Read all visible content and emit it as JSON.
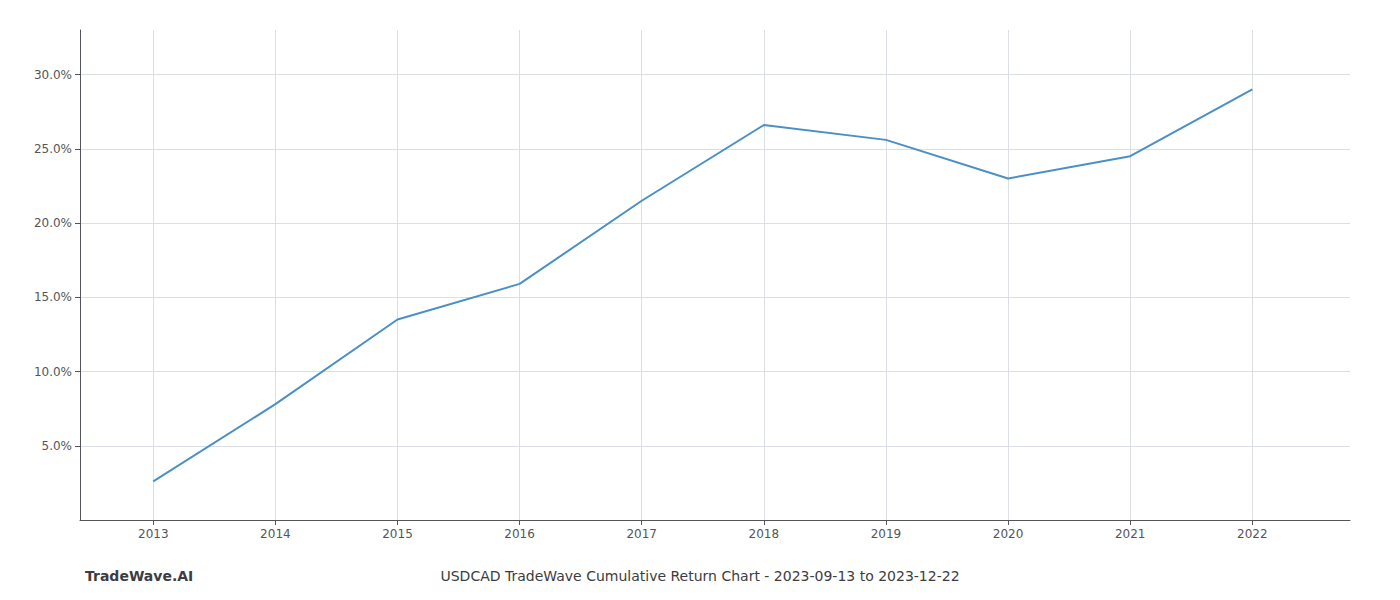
{
  "chart_data": {
    "type": "line",
    "title": "USDCAD TradeWave Cumulative Return Chart - 2023-09-13 to 2023-12-22",
    "annotations": [
      "TradeWave.AI"
    ],
    "x": [
      2013,
      2014,
      2015,
      2016,
      2017,
      2018,
      2019,
      2020,
      2021,
      2022
    ],
    "values": [
      2.6,
      7.8,
      13.5,
      15.9,
      21.5,
      26.6,
      25.6,
      23.0,
      24.5,
      29.0
    ],
    "color": "#4a90c4",
    "xlim": [
      2012.4,
      2022.8
    ],
    "xticks": [
      2013,
      2014,
      2015,
      2016,
      2017,
      2018,
      2019,
      2020,
      2021,
      2022
    ],
    "ylim": [
      0,
      33
    ],
    "yticks": [
      {
        "value": 5.0,
        "label": "5.0%"
      },
      {
        "value": 10.0,
        "label": "10.0%"
      },
      {
        "value": 15.0,
        "label": "15.0%"
      },
      {
        "value": 20.0,
        "label": "20.0%"
      },
      {
        "value": 25.0,
        "label": "25.0%"
      },
      {
        "value": 30.0,
        "label": "30.0%"
      }
    ],
    "grid": true
  }
}
